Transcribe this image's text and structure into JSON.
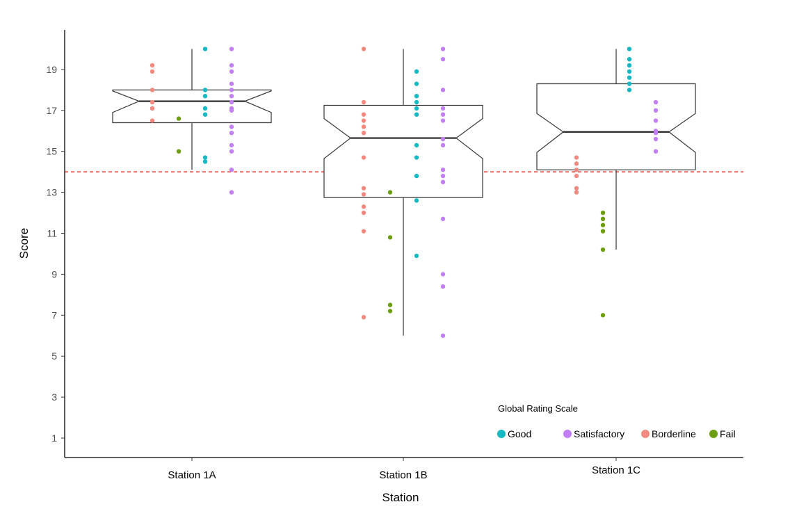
{
  "chart_data": {
    "type": "boxplot",
    "xlabel": "Station",
    "ylabel": "Score",
    "ylim": [
      0,
      21
    ],
    "yticks": [
      1,
      3,
      5,
      7,
      9,
      11,
      13,
      15,
      17,
      19
    ],
    "categories": [
      "Station 1A",
      "Station 1B",
      "Station 1C"
    ],
    "boxes": [
      {
        "category": "Station 1A",
        "q1": 16.4,
        "median": 17.45,
        "q3": 18.0,
        "whisker_low": 14.1,
        "whisker_high": 20.0,
        "notch_low": 16.9,
        "notch_high": 17.95
      },
      {
        "category": "Station 1B",
        "q1": 12.75,
        "median": 15.65,
        "q3": 17.25,
        "whisker_low": 6.0,
        "whisker_high": 20.0,
        "notch_low": 14.65,
        "notch_high": 16.6
      },
      {
        "category": "Station 1C",
        "q1": 14.1,
        "median": 15.95,
        "q3": 18.3,
        "whisker_low": 10.2,
        "whisker_high": 20.0,
        "notch_low": 14.95,
        "notch_high": 16.85
      }
    ],
    "reference_line": {
      "y": 14,
      "style": "dashed",
      "color": "#e8403a"
    },
    "legend": {
      "title": "Global Rating Scale",
      "placement": "bottom-right",
      "entries": [
        {
          "name": "Good",
          "color": "#16b8c4"
        },
        {
          "name": "Satisfactory",
          "color": "#c27ef3"
        },
        {
          "name": "Borderline",
          "color": "#f08a80"
        },
        {
          "name": "Fail",
          "color": "#6d9e12"
        }
      ]
    },
    "points": [
      {
        "category": "Station 1A",
        "group": "Borderline",
        "values": [
          19.2,
          18.9,
          18.0,
          17.4,
          17.1,
          16.5
        ]
      },
      {
        "category": "Station 1A",
        "group": "Fail",
        "values": [
          16.6,
          15.0
        ]
      },
      {
        "category": "Station 1A",
        "group": "Good",
        "values": [
          20.0,
          18.0,
          17.7,
          17.1,
          16.8,
          14.7,
          14.5
        ]
      },
      {
        "category": "Station 1A",
        "group": "Satisfactory",
        "values": [
          20.0,
          19.2,
          18.9,
          18.3,
          18.0,
          17.7,
          17.4,
          17.1,
          17.0,
          16.2,
          15.9,
          15.3,
          15.0,
          14.1,
          13.0
        ]
      },
      {
        "category": "Station 1B",
        "group": "Borderline",
        "values": [
          20.0,
          17.4,
          16.8,
          16.5,
          16.2,
          15.9,
          14.7,
          13.2,
          12.9,
          12.3,
          12.0,
          11.1,
          6.9
        ]
      },
      {
        "category": "Station 1B",
        "group": "Fail",
        "values": [
          13.0,
          10.8,
          7.5,
          7.2
        ]
      },
      {
        "category": "Station 1B",
        "group": "Good",
        "values": [
          18.9,
          18.3,
          17.7,
          17.4,
          17.1,
          16.8,
          15.3,
          14.7,
          13.8,
          12.6,
          9.9
        ]
      },
      {
        "category": "Station 1B",
        "group": "Satisfactory",
        "values": [
          20.0,
          19.5,
          18.0,
          17.1,
          16.8,
          16.5,
          15.6,
          15.3,
          14.1,
          13.8,
          13.5,
          11.7,
          9.0,
          8.4,
          6.0
        ]
      },
      {
        "category": "Station 1C",
        "group": "Borderline",
        "values": [
          14.7,
          14.4,
          14.1,
          13.8,
          13.2,
          13.0
        ]
      },
      {
        "category": "Station 1C",
        "group": "Fail",
        "values": [
          12.0,
          11.7,
          11.4,
          11.1,
          10.2,
          7.0
        ]
      },
      {
        "category": "Station 1C",
        "group": "Good",
        "values": [
          20.0,
          19.5,
          19.2,
          18.9,
          18.6,
          18.3,
          18.0
        ]
      },
      {
        "category": "Station 1C",
        "group": "Satisfactory",
        "values": [
          17.4,
          17.0,
          16.5,
          16.0,
          15.9,
          15.6,
          15.0
        ]
      }
    ]
  }
}
